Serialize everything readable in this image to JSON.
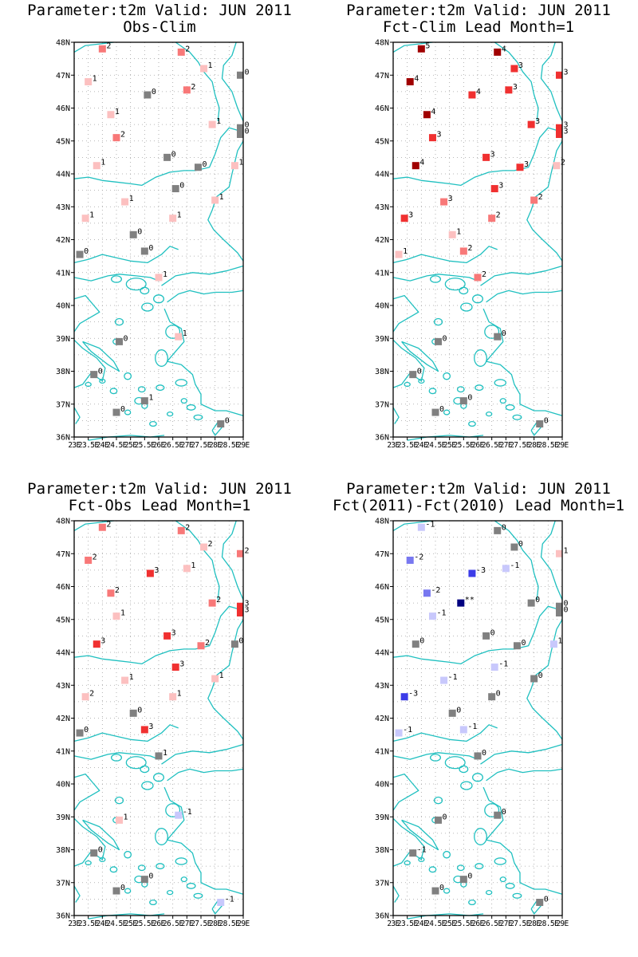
{
  "colors": {
    "coast": "#20c0c0",
    "grid": "#a0a0a0",
    "frame": "#000000",
    "neutral": "#808080",
    "warm": [
      "#fcc0c0",
      "#f87878",
      "#f03030",
      "#a00000"
    ],
    "cool": [
      "#c8c8fc",
      "#7878f0",
      "#3c3ce8",
      "#000080"
    ]
  },
  "axes": {
    "lat_labels": [
      "36N",
      "37N",
      "38N",
      "39N",
      "40N",
      "41N",
      "42N",
      "43N",
      "44N",
      "45N",
      "46N",
      "47N",
      "48N"
    ],
    "lon_labels": [
      "23E",
      "23.5E",
      "24E",
      "24.5E",
      "25E",
      "25.5E",
      "26E",
      "26.5E",
      "27E",
      "27.5E",
      "28E",
      "28.5E",
      "29E"
    ],
    "xlim": [
      23,
      29
    ],
    "ylim": [
      36,
      48
    ]
  },
  "panels": [
    {
      "title1": "Parameter:t2m Valid: JUN 2011",
      "title2": "Obs-Clim",
      "stations": [
        {
          "lon": 24.0,
          "lat": 47.8,
          "v": "2",
          "c": "warm2"
        },
        {
          "lon": 26.8,
          "lat": 47.7,
          "v": "2",
          "c": "warm2"
        },
        {
          "lon": 27.6,
          "lat": 47.2,
          "v": "1",
          "c": "warm1"
        },
        {
          "lon": 28.9,
          "lat": 47.0,
          "v": "0",
          "c": "neutral"
        },
        {
          "lon": 23.5,
          "lat": 46.8,
          "v": "1",
          "c": "warm1"
        },
        {
          "lon": 27.0,
          "lat": 46.55,
          "v": "2",
          "c": "warm2"
        },
        {
          "lon": 25.6,
          "lat": 46.4,
          "v": "0",
          "c": "neutral"
        },
        {
          "lon": 24.3,
          "lat": 45.8,
          "v": "1",
          "c": "warm1"
        },
        {
          "lon": 27.9,
          "lat": 45.5,
          "v": "1",
          "c": "warm1"
        },
        {
          "lon": 28.9,
          "lat": 45.4,
          "v": "0",
          "c": "neutral"
        },
        {
          "lon": 28.9,
          "lat": 45.2,
          "v": "0",
          "c": "neutral"
        },
        {
          "lon": 24.5,
          "lat": 45.1,
          "v": "2",
          "c": "warm2"
        },
        {
          "lon": 26.3,
          "lat": 44.5,
          "v": "0",
          "c": "neutral"
        },
        {
          "lon": 23.8,
          "lat": 44.25,
          "v": "1",
          "c": "warm1"
        },
        {
          "lon": 27.4,
          "lat": 44.2,
          "v": "0",
          "c": "neutral"
        },
        {
          "lon": 28.7,
          "lat": 44.25,
          "v": "1",
          "c": "warm1"
        },
        {
          "lon": 26.6,
          "lat": 43.55,
          "v": "0",
          "c": "neutral"
        },
        {
          "lon": 28.0,
          "lat": 43.2,
          "v": "1",
          "c": "warm1"
        },
        {
          "lon": 24.8,
          "lat": 43.15,
          "v": "1",
          "c": "warm1"
        },
        {
          "lon": 23.4,
          "lat": 42.65,
          "v": "1",
          "c": "warm1"
        },
        {
          "lon": 26.5,
          "lat": 42.65,
          "v": "1",
          "c": "warm1"
        },
        {
          "lon": 25.1,
          "lat": 42.15,
          "v": "0",
          "c": "neutral"
        },
        {
          "lon": 25.5,
          "lat": 41.65,
          "v": "0",
          "c": "neutral"
        },
        {
          "lon": 23.2,
          "lat": 41.55,
          "v": "0",
          "c": "neutral"
        },
        {
          "lon": 26.0,
          "lat": 40.85,
          "v": "1",
          "c": "warm1"
        },
        {
          "lon": 24.6,
          "lat": 38.9,
          "v": "0",
          "c": "neutral"
        },
        {
          "lon": 26.7,
          "lat": 39.05,
          "v": "1",
          "c": "warm1"
        },
        {
          "lon": 23.7,
          "lat": 37.9,
          "v": "0",
          "c": "neutral"
        },
        {
          "lon": 25.5,
          "lat": 37.1,
          "v": "1",
          "c": "neutral"
        },
        {
          "lon": 24.5,
          "lat": 36.75,
          "v": "0",
          "c": "neutral"
        },
        {
          "lon": 28.2,
          "lat": 36.4,
          "v": "0",
          "c": "neutral"
        }
      ]
    },
    {
      "title1": "Parameter:t2m Valid: JUN 2011",
      "title2": "Fct-Clim Lead Month=1",
      "stations": [
        {
          "lon": 24.0,
          "lat": 47.8,
          "v": "5",
          "c": "warm4"
        },
        {
          "lon": 26.7,
          "lat": 47.7,
          "v": "4",
          "c": "warm4"
        },
        {
          "lon": 27.3,
          "lat": 47.2,
          "v": "3",
          "c": "warm3"
        },
        {
          "lon": 28.9,
          "lat": 47.0,
          "v": "3",
          "c": "warm3"
        },
        {
          "lon": 23.6,
          "lat": 46.8,
          "v": "4",
          "c": "warm4"
        },
        {
          "lon": 27.1,
          "lat": 46.55,
          "v": "3",
          "c": "warm3"
        },
        {
          "lon": 25.8,
          "lat": 46.4,
          "v": "4",
          "c": "warm3"
        },
        {
          "lon": 24.2,
          "lat": 45.8,
          "v": "4",
          "c": "warm4"
        },
        {
          "lon": 27.9,
          "lat": 45.5,
          "v": "3",
          "c": "warm3"
        },
        {
          "lon": 28.9,
          "lat": 45.4,
          "v": "3",
          "c": "warm3"
        },
        {
          "lon": 28.9,
          "lat": 45.2,
          "v": "3",
          "c": "warm3"
        },
        {
          "lon": 24.4,
          "lat": 45.1,
          "v": "3",
          "c": "warm3"
        },
        {
          "lon": 26.3,
          "lat": 44.5,
          "v": "3",
          "c": "warm3"
        },
        {
          "lon": 23.8,
          "lat": 44.25,
          "v": "4",
          "c": "warm4"
        },
        {
          "lon": 27.5,
          "lat": 44.2,
          "v": "3",
          "c": "warm3"
        },
        {
          "lon": 28.8,
          "lat": 44.25,
          "v": "2",
          "c": "warm1"
        },
        {
          "lon": 26.6,
          "lat": 43.55,
          "v": "3",
          "c": "warm3"
        },
        {
          "lon": 28.0,
          "lat": 43.2,
          "v": "2",
          "c": "warm2"
        },
        {
          "lon": 24.8,
          "lat": 43.15,
          "v": "3",
          "c": "warm2"
        },
        {
          "lon": 23.4,
          "lat": 42.65,
          "v": "3",
          "c": "warm3"
        },
        {
          "lon": 26.5,
          "lat": 42.65,
          "v": "2",
          "c": "warm2"
        },
        {
          "lon": 25.1,
          "lat": 42.15,
          "v": "1",
          "c": "warm1"
        },
        {
          "lon": 25.5,
          "lat": 41.65,
          "v": "2",
          "c": "warm2"
        },
        {
          "lon": 23.2,
          "lat": 41.55,
          "v": "1",
          "c": "warm1"
        },
        {
          "lon": 26.0,
          "lat": 40.85,
          "v": "2",
          "c": "warm2"
        },
        {
          "lon": 24.6,
          "lat": 38.9,
          "v": "0",
          "c": "neutral"
        },
        {
          "lon": 26.7,
          "lat": 39.05,
          "v": "0",
          "c": "neutral"
        },
        {
          "lon": 23.7,
          "lat": 37.9,
          "v": "0",
          "c": "neutral"
        },
        {
          "lon": 25.5,
          "lat": 37.1,
          "v": "0",
          "c": "neutral"
        },
        {
          "lon": 24.5,
          "lat": 36.75,
          "v": "0",
          "c": "neutral"
        },
        {
          "lon": 28.2,
          "lat": 36.4,
          "v": "0",
          "c": "neutral"
        }
      ]
    },
    {
      "title1": "Parameter:t2m Valid: JUN 2011",
      "title2": "Fct-Obs Lead Month=1",
      "stations": [
        {
          "lon": 24.0,
          "lat": 47.8,
          "v": "2",
          "c": "warm2"
        },
        {
          "lon": 26.8,
          "lat": 47.7,
          "v": "2",
          "c": "warm2"
        },
        {
          "lon": 27.6,
          "lat": 47.2,
          "v": "2",
          "c": "warm1"
        },
        {
          "lon": 28.9,
          "lat": 47.0,
          "v": "2",
          "c": "warm2"
        },
        {
          "lon": 23.5,
          "lat": 46.8,
          "v": "2",
          "c": "warm2"
        },
        {
          "lon": 27.0,
          "lat": 46.55,
          "v": "1",
          "c": "warm1"
        },
        {
          "lon": 25.7,
          "lat": 46.4,
          "v": "3",
          "c": "warm3"
        },
        {
          "lon": 24.3,
          "lat": 45.8,
          "v": "2",
          "c": "warm2"
        },
        {
          "lon": 27.9,
          "lat": 45.5,
          "v": "2",
          "c": "warm2"
        },
        {
          "lon": 28.9,
          "lat": 45.4,
          "v": "3",
          "c": "warm3"
        },
        {
          "lon": 28.9,
          "lat": 45.2,
          "v": "3",
          "c": "warm3"
        },
        {
          "lon": 24.5,
          "lat": 45.1,
          "v": "1",
          "c": "warm1"
        },
        {
          "lon": 26.3,
          "lat": 44.5,
          "v": "3",
          "c": "warm3"
        },
        {
          "lon": 23.8,
          "lat": 44.25,
          "v": "3",
          "c": "warm3"
        },
        {
          "lon": 27.5,
          "lat": 44.2,
          "v": "2",
          "c": "warm2"
        },
        {
          "lon": 28.7,
          "lat": 44.25,
          "v": "0",
          "c": "neutral"
        },
        {
          "lon": 26.6,
          "lat": 43.55,
          "v": "3",
          "c": "warm3"
        },
        {
          "lon": 28.0,
          "lat": 43.2,
          "v": "1",
          "c": "warm1"
        },
        {
          "lon": 24.8,
          "lat": 43.15,
          "v": "1",
          "c": "warm1"
        },
        {
          "lon": 23.4,
          "lat": 42.65,
          "v": "2",
          "c": "warm1"
        },
        {
          "lon": 26.5,
          "lat": 42.65,
          "v": "1",
          "c": "warm1"
        },
        {
          "lon": 25.1,
          "lat": 42.15,
          "v": "0",
          "c": "neutral"
        },
        {
          "lon": 25.5,
          "lat": 41.65,
          "v": "3",
          "c": "warm3"
        },
        {
          "lon": 23.2,
          "lat": 41.55,
          "v": "0",
          "c": "neutral"
        },
        {
          "lon": 26.0,
          "lat": 40.85,
          "v": "1",
          "c": "neutral"
        },
        {
          "lon": 24.6,
          "lat": 38.9,
          "v": "1",
          "c": "warm1"
        },
        {
          "lon": 26.7,
          "lat": 39.05,
          "v": "-1",
          "c": "cool1"
        },
        {
          "lon": 23.7,
          "lat": 37.9,
          "v": "0",
          "c": "neutral"
        },
        {
          "lon": 25.5,
          "lat": 37.1,
          "v": "0",
          "c": "neutral"
        },
        {
          "lon": 24.5,
          "lat": 36.75,
          "v": "0",
          "c": "neutral"
        },
        {
          "lon": 28.2,
          "lat": 36.4,
          "v": "-1",
          "c": "cool1"
        }
      ]
    },
    {
      "title1": "Parameter:t2m Valid: JUN 2011",
      "title2": "Fct(2011)-Fct(2010) Lead Month=1",
      "stations": [
        {
          "lon": 24.0,
          "lat": 47.8,
          "v": "-1",
          "c": "cool1"
        },
        {
          "lon": 26.7,
          "lat": 47.7,
          "v": "0",
          "c": "neutral"
        },
        {
          "lon": 27.3,
          "lat": 47.2,
          "v": "0",
          "c": "neutral"
        },
        {
          "lon": 28.9,
          "lat": 47.0,
          "v": "1",
          "c": "warm1"
        },
        {
          "lon": 23.6,
          "lat": 46.8,
          "v": "-2",
          "c": "cool2"
        },
        {
          "lon": 27.0,
          "lat": 46.55,
          "v": "-1",
          "c": "cool1"
        },
        {
          "lon": 25.8,
          "lat": 46.4,
          "v": "-3",
          "c": "cool3"
        },
        {
          "lon": 24.2,
          "lat": 45.8,
          "v": "-2",
          "c": "cool2"
        },
        {
          "lon": 25.4,
          "lat": 45.5,
          "v": "**",
          "c": "cool4"
        },
        {
          "lon": 27.9,
          "lat": 45.5,
          "v": "0",
          "c": "neutral"
        },
        {
          "lon": 28.9,
          "lat": 45.4,
          "v": "0",
          "c": "neutral"
        },
        {
          "lon": 28.9,
          "lat": 45.2,
          "v": "0",
          "c": "neutral"
        },
        {
          "lon": 24.4,
          "lat": 45.1,
          "v": "-1",
          "c": "cool1"
        },
        {
          "lon": 26.3,
          "lat": 44.5,
          "v": "0",
          "c": "neutral"
        },
        {
          "lon": 23.8,
          "lat": 44.25,
          "v": "0",
          "c": "neutral"
        },
        {
          "lon": 27.4,
          "lat": 44.2,
          "v": "0",
          "c": "neutral"
        },
        {
          "lon": 28.7,
          "lat": 44.25,
          "v": "1",
          "c": "cool1"
        },
        {
          "lon": 26.6,
          "lat": 43.55,
          "v": "-1",
          "c": "cool1"
        },
        {
          "lon": 28.0,
          "lat": 43.2,
          "v": "0",
          "c": "neutral"
        },
        {
          "lon": 24.8,
          "lat": 43.15,
          "v": "-1",
          "c": "cool1"
        },
        {
          "lon": 23.4,
          "lat": 42.65,
          "v": "-3",
          "c": "cool3"
        },
        {
          "lon": 26.5,
          "lat": 42.65,
          "v": "0",
          "c": "neutral"
        },
        {
          "lon": 25.1,
          "lat": 42.15,
          "v": "0",
          "c": "neutral"
        },
        {
          "lon": 25.5,
          "lat": 41.65,
          "v": "-1",
          "c": "cool1"
        },
        {
          "lon": 23.2,
          "lat": 41.55,
          "v": "-1",
          "c": "cool1"
        },
        {
          "lon": 26.0,
          "lat": 40.85,
          "v": "0",
          "c": "neutral"
        },
        {
          "lon": 24.6,
          "lat": 38.9,
          "v": "0",
          "c": "neutral"
        },
        {
          "lon": 26.7,
          "lat": 39.05,
          "v": "0",
          "c": "neutral"
        },
        {
          "lon": 23.7,
          "lat": 37.9,
          "v": "-1",
          "c": "neutral"
        },
        {
          "lon": 25.5,
          "lat": 37.1,
          "v": "0",
          "c": "neutral"
        },
        {
          "lon": 24.5,
          "lat": 36.75,
          "v": "0",
          "c": "neutral"
        },
        {
          "lon": 28.2,
          "lat": 36.4,
          "v": "0",
          "c": "neutral"
        }
      ]
    }
  ]
}
